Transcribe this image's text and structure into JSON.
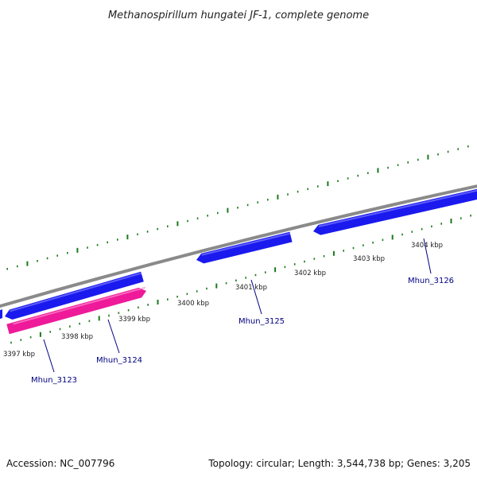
{
  "title": "Methanospirillum hungatei JF-1, complete genome",
  "footer": {
    "accession": "Accession: NC_007796",
    "topology": "Topology: circular; Length: 3,544,738 bp; Genes: 3,205"
  },
  "colors": {
    "backbone": "#8a8a8a",
    "forward_gene": "#1a1aee",
    "reverse_gene": "#ee1a99",
    "tick": "#1a7a1a",
    "gene_label": "#000080"
  },
  "ticks": [
    {
      "label": "3397 kbp"
    },
    {
      "label": "3398 kbp"
    },
    {
      "label": "3399 kbp"
    },
    {
      "label": "3400 kbp"
    },
    {
      "label": "3401 kbp"
    },
    {
      "label": "3402 kbp"
    },
    {
      "label": "3403 kbp"
    },
    {
      "label": "3404 kbp"
    }
  ],
  "genes": [
    {
      "name": "Mhun_3123",
      "strand": "forward"
    },
    {
      "name": "Mhun_3124",
      "strand": "reverse"
    },
    {
      "name": "Mhun_3125",
      "strand": "forward"
    },
    {
      "name": "Mhun_3126",
      "strand": "forward"
    }
  ]
}
